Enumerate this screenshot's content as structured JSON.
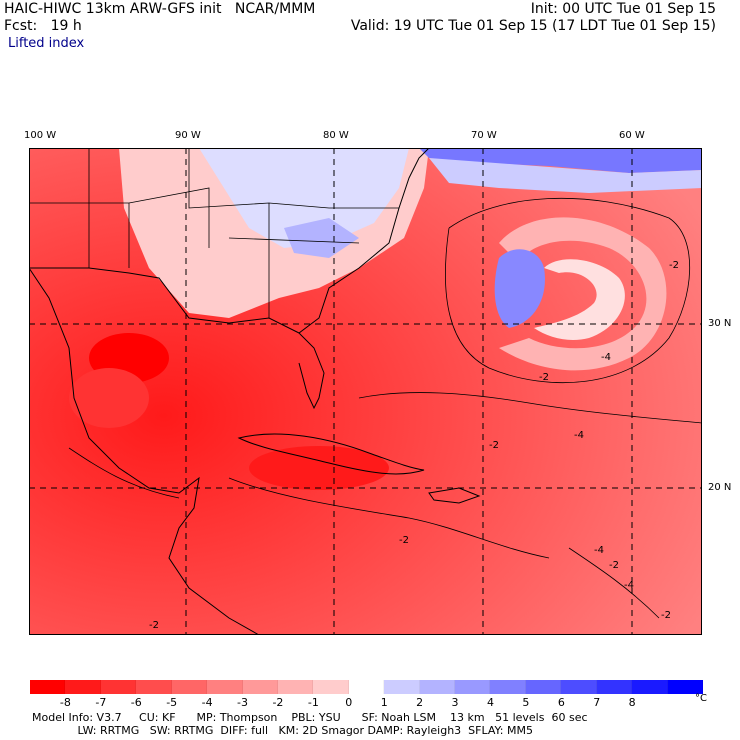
{
  "header": {
    "model": "HAIC-HIWC 13km ARW-GFS init   NCAR/MMM",
    "init": "Init: 00 UTC Tue 01 Sep 15",
    "fcst": "Fcst:   19 h",
    "valid": "Valid: 19 UTC Tue 01 Sep 15 (17 LDT Tue 01 Sep 15)",
    "field": "Lifted index"
  },
  "map": {
    "lon_labels": [
      "100 W",
      "90 W",
      "80 W",
      "70 W",
      "60 W"
    ],
    "lat_labels": [
      "30 N",
      "20 N"
    ],
    "contour_labels": [
      "-2",
      "-2",
      "-2",
      "-4",
      "-4",
      "-4",
      "-2",
      "-2",
      "-2",
      "-4",
      "-2"
    ]
  },
  "colorbar": {
    "labels": [
      "-8",
      "-7",
      "-6",
      "-5",
      "-4",
      "-3",
      "-2",
      "-1",
      "0",
      "1",
      "2",
      "3",
      "4",
      "5",
      "6",
      "7",
      "8"
    ],
    "unit": "°C",
    "colors": [
      "#ff0000",
      "#ff1a1a",
      "#ff3333",
      "#ff4d4d",
      "#ff6666",
      "#ff8080",
      "#ff9999",
      "#ffb3b3",
      "#ffcccc",
      "#ffffff",
      "#ccccff",
      "#b3b3ff",
      "#9999ff",
      "#8080ff",
      "#6666ff",
      "#4d4dff",
      "#3333ff",
      "#1a1aff",
      "#0000ff"
    ]
  },
  "info": {
    "line1": "Model Info: V3.7     CU: KF      MP: Thompson    PBL: YSU      SF: Noah LSM    13 km   51 levels  60 sec",
    "line2": "             LW: RRTMG   SW: RRTMG  DIFF: full   KM: 2D Smagor DAMP: Rayleigh3  SFLAY: MM5"
  }
}
